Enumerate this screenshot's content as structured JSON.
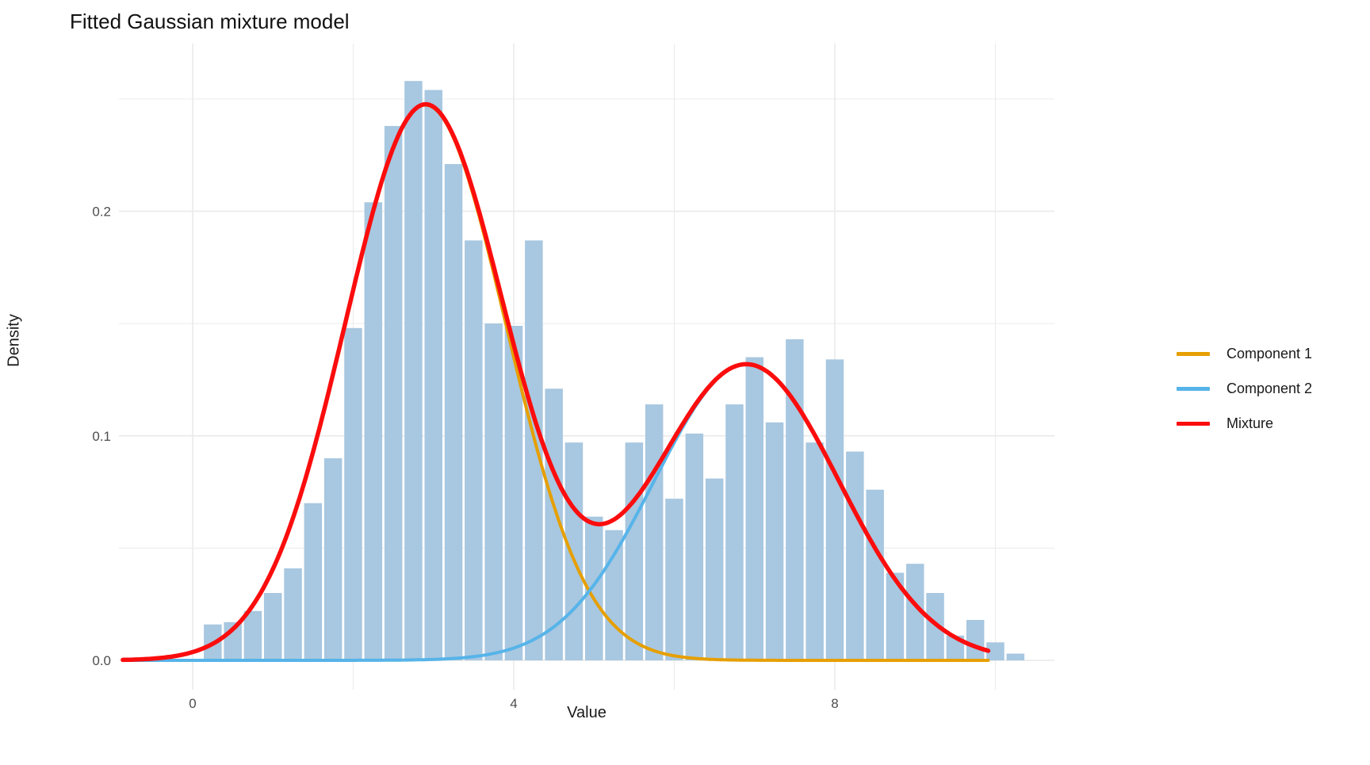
{
  "title": "Fitted Gaussian mixture model",
  "chart_data": {
    "type": "bar",
    "subtype": "histogram-with-density-curves",
    "title": "Fitted Gaussian mixture model",
    "xlabel": "Value",
    "ylabel": "Density",
    "x_ticks": [
      0,
      4,
      8
    ],
    "x_minor_gridlines": [
      2,
      6,
      10
    ],
    "y_ticks": [
      "0.0",
      "0.1",
      "0.2"
    ],
    "y_tick_values": [
      0,
      0.1,
      0.2
    ],
    "y_minor_gridlines": [
      0.05,
      0.15,
      0.25
    ],
    "xlim": [
      -0.92,
      10.73
    ],
    "ylim": [
      0,
      0.275
    ],
    "grid": "major+minor",
    "background": "#ffffff",
    "gridline_color": "#ebebeb",
    "tick_label_color": "#4d4d4d",
    "histogram": {
      "color": "#a8c7e0",
      "bin_width": 0.25,
      "bin_starts": [
        0.125,
        0.375,
        0.625,
        0.875,
        1.125,
        1.375,
        1.625,
        1.875,
        2.125,
        2.375,
        2.625,
        2.875,
        3.125,
        3.375,
        3.625,
        3.875,
        4.125,
        4.375,
        4.625,
        4.875,
        5.125,
        5.375,
        5.625,
        5.875,
        6.125,
        6.375,
        6.625,
        6.875,
        7.125,
        7.375,
        7.625,
        7.875,
        8.125,
        8.375,
        8.625,
        8.875,
        9.125,
        9.375,
        9.625,
        9.875,
        10.125
      ],
      "densities": [
        0.016,
        0.017,
        0.022,
        0.03,
        0.041,
        0.07,
        0.09,
        0.148,
        0.204,
        0.238,
        0.258,
        0.254,
        0.221,
        0.187,
        0.15,
        0.149,
        0.187,
        0.121,
        0.097,
        0.064,
        0.058,
        0.097,
        0.114,
        0.072,
        0.101,
        0.081,
        0.114,
        0.135,
        0.106,
        0.143,
        0.097,
        0.134,
        0.093,
        0.076,
        0.039,
        0.043,
        0.03,
        0.011,
        0.018,
        0.008,
        0.003
      ]
    },
    "curves": [
      {
        "name": "Component 1",
        "color": "#e69f00",
        "weight": 0.62,
        "mean": 2.9,
        "sd": 1.0,
        "width": 4,
        "x_range": [
          -0.87,
          9.94
        ]
      },
      {
        "name": "Component 2",
        "color": "#56b4e9",
        "weight": 0.38,
        "mean": 6.9,
        "sd": 1.15,
        "width": 4,
        "x_range": [
          -0.87,
          9.94
        ]
      },
      {
        "name": "Mixture",
        "color": "#fb0d0d",
        "mixture_of": [
          0,
          1
        ],
        "width": 5.5,
        "x_range": [
          -0.87,
          9.94
        ]
      }
    ],
    "curve_landmarks": {
      "mixture_peak_1": {
        "x": 2.9,
        "density": 0.248
      },
      "mixture_valley": {
        "x": 5.0,
        "density": 0.066
      },
      "mixture_peak_2": {
        "x": 6.9,
        "density": 0.13
      }
    },
    "legend": {
      "position": "right",
      "entries": [
        {
          "label": "Component 1",
          "color": "#e69f00"
        },
        {
          "label": "Component 2",
          "color": "#56b4e9"
        },
        {
          "label": "Mixture",
          "color": "#fb0d0d"
        }
      ]
    }
  }
}
